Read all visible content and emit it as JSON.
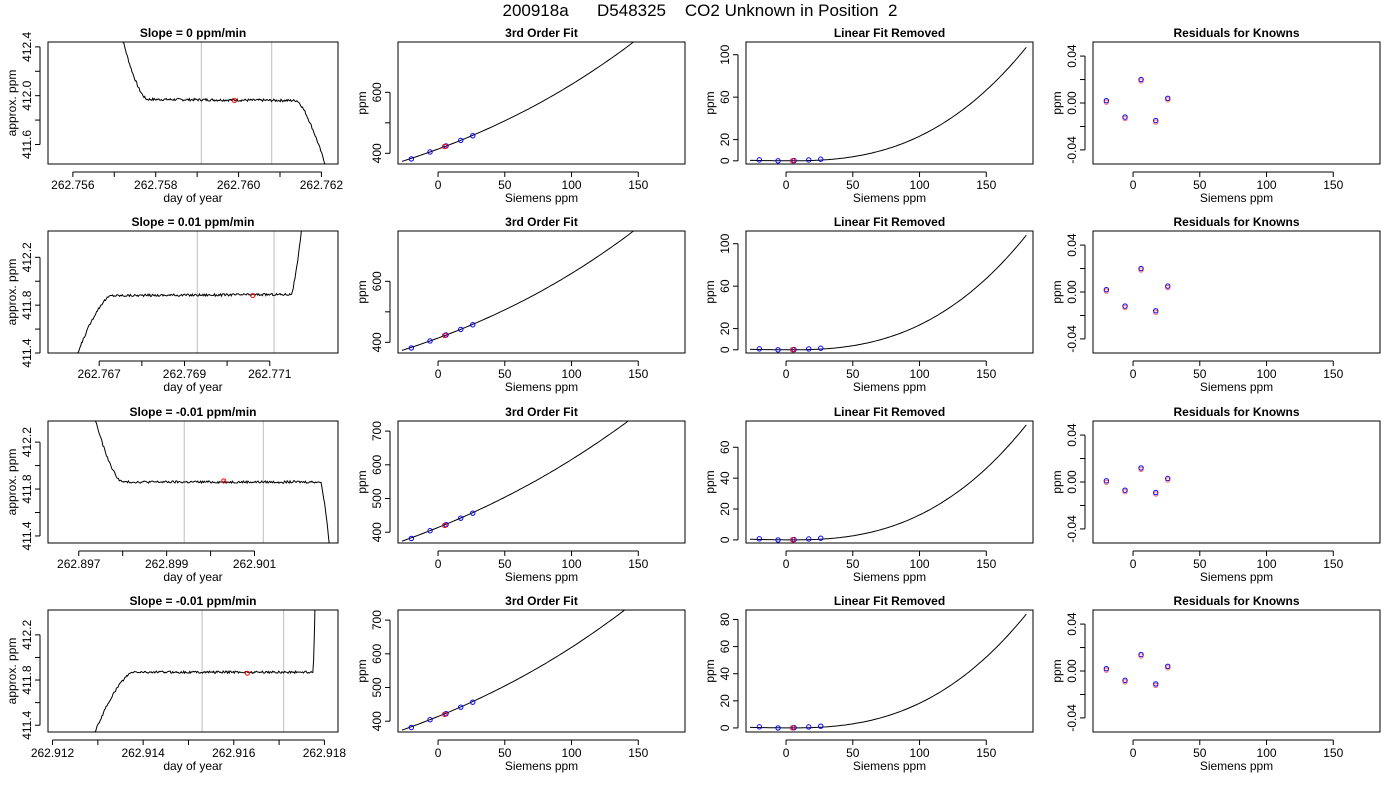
{
  "page": {
    "title": "200918a      D548325    CO2 Unknown in Position  2"
  },
  "colors": {
    "line": "#000000",
    "grid": "#bebebe",
    "known_point": "#0000ff",
    "unknown_point": "#ff0000",
    "residual_point": "#8a2be2"
  },
  "knowns_x": [
    -20.0,
    -6.0,
    6.0,
    17.0,
    26.0
  ],
  "unknown_x": 5.0,
  "chart_data": [
    {
      "type": "line",
      "title": "Slope =  0  ppm/min",
      "xlabel": "day of year",
      "ylabel": "approx. ppm",
      "xlim": [
        262.7554,
        262.7624
      ],
      "ylim": [
        411.44,
        412.44
      ],
      "xticks": [
        "262.756",
        "262.758",
        "262.760",
        "262.762"
      ],
      "xtick_values": [
        262.756,
        262.758,
        262.76,
        262.762
      ],
      "yticks": [
        "411.6",
        "412.0",
        "412.4"
      ],
      "ytick_values": [
        411.6,
        412.0,
        412.4
      ],
      "vlines": [
        262.7591,
        262.7608
      ],
      "trace": {
        "start": 262.7571,
        "end": 262.7621,
        "level": 411.97,
        "noise": 0.01,
        "drift": -0.01,
        "rise_end": 262.7578,
        "rise_from": 412.6,
        "fall_start": 262.7614,
        "fall_to": 411.44
      },
      "unknown_point": {
        "x": 262.7599,
        "y": 411.96
      }
    },
    {
      "type": "line",
      "title": "3rd Order Fit",
      "xlabel": "Siemens ppm",
      "ylabel": "ppm",
      "xlim": [
        -30,
        185
      ],
      "ylim": [
        365,
        765
      ],
      "xticks": [
        "0",
        "50",
        "100",
        "150"
      ],
      "xtick_values": [
        0,
        50,
        100,
        150
      ],
      "yticks": [
        "400",
        "600"
      ],
      "ytick_values": [
        400,
        600
      ],
      "fit": {
        "a": 414.0,
        "b": 1.615,
        "c": 0.00435,
        "d": 6.8e-06,
        "from": -27,
        "to": 180
      },
      "knowns_y": [
        381.6,
        404.5,
        424.2,
        442.4,
        457.6
      ],
      "unknown_y": 422.5
    },
    {
      "type": "line",
      "title": "Linear Fit Removed",
      "xlabel": "Siemens ppm",
      "ylabel": "ppm",
      "xlim": [
        -30,
        185
      ],
      "ylim": [
        -3,
        112
      ],
      "xticks": [
        "0",
        "50",
        "100",
        "150"
      ],
      "xtick_values": [
        0,
        50,
        100,
        150
      ],
      "yticks": [
        "0",
        "20",
        "60",
        "100"
      ],
      "ytick_values": [
        0,
        20,
        60,
        100
      ],
      "curve_top": 107.0,
      "knowns_y": [
        0.9,
        0.0,
        0.2,
        0.8,
        1.5
      ],
      "unknown_y": 0.1
    },
    {
      "type": "scatter",
      "title": "Residuals for Knowns",
      "xlabel": "Siemens ppm",
      "ylabel": "ppm",
      "xlim": [
        -30,
        185
      ],
      "ylim": [
        -0.052,
        0.052
      ],
      "xticks": [
        "0",
        "50",
        "100",
        "150"
      ],
      "xtick_values": [
        0,
        50,
        100,
        150
      ],
      "yticks": [
        "-0.04",
        "0.00",
        "0.04"
      ],
      "ytick_values": [
        -0.04,
        0.0,
        0.04
      ],
      "residuals_y": [
        0.002,
        -0.012,
        0.02,
        -0.015,
        0.004
      ]
    },
    {
      "type": "line",
      "title": "Slope =  0.01  ppm/min",
      "xlabel": "day of year",
      "ylabel": "approx. ppm",
      "xlim": [
        262.7658,
        262.7726
      ],
      "ylim": [
        411.4,
        412.42
      ],
      "xticks": [
        "262.767",
        "262.769",
        "262.771"
      ],
      "xtick_values": [
        262.767,
        262.769,
        262.771
      ],
      "yticks": [
        "411.4",
        "411.8",
        "412.2"
      ],
      "ytick_values": [
        411.4,
        411.8,
        412.2
      ],
      "vlines": [
        262.7693,
        262.7711
      ],
      "trace": {
        "start": 262.7664,
        "end": 262.7718,
        "level": 411.88,
        "noise": 0.01,
        "drift": 0.01,
        "rise_end": 262.7673,
        "rise_from": 411.3,
        "fall_start": 262.7715,
        "fall_to": 412.6
      },
      "unknown_point": {
        "x": 262.7706,
        "y": 411.88
      }
    },
    {
      "type": "line",
      "title": "3rd Order Fit",
      "xlabel": "Siemens ppm",
      "ylabel": "ppm",
      "xlim": [
        -30,
        185
      ],
      "ylim": [
        365,
        765
      ],
      "xticks": [
        "0",
        "50",
        "100",
        "150"
      ],
      "xtick_values": [
        0,
        50,
        100,
        150
      ],
      "yticks": [
        "400",
        "600"
      ],
      "ytick_values": [
        400,
        600
      ],
      "fit": {
        "a": 414.0,
        "b": 1.615,
        "c": 0.00435,
        "d": 6.8e-06,
        "from": -27,
        "to": 180
      },
      "knowns_y": [
        381.6,
        404.5,
        424.2,
        442.4,
        457.6
      ],
      "unknown_y": 422.5
    },
    {
      "type": "line",
      "title": "Linear Fit Removed",
      "xlabel": "Siemens ppm",
      "ylabel": "ppm",
      "xlim": [
        -30,
        185
      ],
      "ylim": [
        -3,
        112
      ],
      "xticks": [
        "0",
        "50",
        "100",
        "150"
      ],
      "xtick_values": [
        0,
        50,
        100,
        150
      ],
      "yticks": [
        "0",
        "20",
        "60",
        "100"
      ],
      "ytick_values": [
        0,
        20,
        60,
        100
      ],
      "curve_top": 108.0,
      "knowns_y": [
        0.9,
        0.0,
        0.2,
        0.8,
        1.5
      ],
      "unknown_y": 0.1
    },
    {
      "type": "scatter",
      "title": "Residuals for Knowns",
      "xlabel": "Siemens ppm",
      "ylabel": "ppm",
      "xlim": [
        -30,
        185
      ],
      "ylim": [
        -0.052,
        0.052
      ],
      "xticks": [
        "0",
        "50",
        "100",
        "150"
      ],
      "xtick_values": [
        0,
        50,
        100,
        150
      ],
      "yticks": [
        "-0.04",
        "0.00",
        "0.04"
      ],
      "ytick_values": [
        -0.04,
        0.0,
        0.04
      ],
      "residuals_y": [
        0.002,
        -0.012,
        0.02,
        -0.016,
        0.005
      ]
    },
    {
      "type": "line",
      "title": "Slope =  -0.01  ppm/min",
      "xlabel": "day of year",
      "ylabel": "approx. ppm",
      "xlim": [
        262.8963,
        262.9029
      ],
      "ylim": [
        411.34,
        412.38
      ],
      "xticks": [
        "262.897",
        "262.899",
        "262.901"
      ],
      "xtick_values": [
        262.897,
        262.899,
        262.901
      ],
      "yticks": [
        "411.4",
        "411.8",
        "412.2"
      ],
      "ytick_values": [
        411.4,
        411.8,
        412.2
      ],
      "vlines": [
        262.8994,
        262.9012
      ],
      "trace": {
        "start": 262.8973,
        "end": 262.9027,
        "level": 411.86,
        "noise": 0.01,
        "drift": 0.0,
        "rise_end": 262.898,
        "rise_from": 412.5,
        "fall_start": 262.9025,
        "fall_to": 411.34
      },
      "unknown_point": {
        "x": 262.9003,
        "y": 411.87
      }
    },
    {
      "type": "line",
      "title": "3rd Order Fit",
      "xlabel": "Siemens ppm",
      "ylabel": "ppm",
      "xlim": [
        -30,
        185
      ],
      "ylim": [
        368,
        730
      ],
      "xticks": [
        "0",
        "50",
        "100",
        "150"
      ],
      "xtick_values": [
        0,
        50,
        100,
        150
      ],
      "yticks": [
        "400",
        "500",
        "600",
        "700"
      ],
      "ytick_values": [
        400,
        500,
        600,
        700
      ],
      "fit": {
        "a": 414.0,
        "b": 1.6,
        "c": 0.0037,
        "d": 4.5e-06,
        "from": -27,
        "to": 180
      },
      "knowns_y": [
        381.5,
        404.4,
        422.4,
        441.7,
        456.5
      ],
      "unknown_y": 420.5
    },
    {
      "type": "line",
      "title": "Linear Fit Removed",
      "xlabel": "Siemens ppm",
      "ylabel": "ppm",
      "xlim": [
        -30,
        185
      ],
      "ylim": [
        -2,
        77
      ],
      "xticks": [
        "0",
        "50",
        "100",
        "150"
      ],
      "xtick_values": [
        0,
        50,
        100,
        150
      ],
      "yticks": [
        "0",
        "20",
        "40",
        "60"
      ],
      "ytick_values": [
        0,
        20,
        40,
        60
      ],
      "curve_top": 74.5,
      "knowns_y": [
        0.7,
        0.0,
        0.2,
        0.6,
        1.1
      ],
      "unknown_y": 0.1
    },
    {
      "type": "scatter",
      "title": "Residuals for Knowns",
      "xlabel": "Siemens ppm",
      "ylabel": "ppm",
      "xlim": [
        -30,
        185
      ],
      "ylim": [
        -0.052,
        0.052
      ],
      "xticks": [
        "0",
        "50",
        "100",
        "150"
      ],
      "xtick_values": [
        0,
        50,
        100,
        150
      ],
      "yticks": [
        "-0.04",
        "0.00",
        "0.04"
      ],
      "ytick_values": [
        -0.04,
        0.0,
        0.04
      ],
      "residuals_y": [
        0.001,
        -0.007,
        0.012,
        -0.009,
        0.003
      ]
    },
    {
      "type": "line",
      "title": "Slope =  -0.01  ppm/min",
      "xlabel": "day of year",
      "ylabel": "approx. ppm",
      "xlim": [
        262.9119,
        262.9183
      ],
      "ylim": [
        411.34,
        412.42
      ],
      "xticks": [
        "262.912",
        "262.914",
        "262.916",
        "262.918"
      ],
      "xtick_values": [
        262.912,
        262.914,
        262.916,
        262.918
      ],
      "yticks": [
        "411.4",
        "411.8",
        "412.2"
      ],
      "ytick_values": [
        411.4,
        411.8,
        412.2
      ],
      "vlines": [
        262.9153,
        262.9171
      ],
      "trace": {
        "start": 262.9129,
        "end": 262.9178,
        "level": 411.87,
        "noise": 0.01,
        "drift": 0.0,
        "rise_end": 262.9138,
        "rise_from": 411.3,
        "fall_start": 262.91775,
        "fall_to": 412.6
      },
      "unknown_point": {
        "x": 262.9163,
        "y": 411.86
      }
    },
    {
      "type": "line",
      "title": "3rd Order Fit",
      "xlabel": "Siemens ppm",
      "ylabel": "ppm",
      "xlim": [
        -30,
        185
      ],
      "ylim": [
        368,
        730
      ],
      "xticks": [
        "0",
        "50",
        "100",
        "150"
      ],
      "xtick_values": [
        0,
        50,
        100,
        150
      ],
      "yticks": [
        "400",
        "500",
        "600",
        "700"
      ],
      "ytick_values": [
        400,
        500,
        600,
        700
      ],
      "fit": {
        "a": 414.0,
        "b": 1.6,
        "c": 0.004,
        "d": 5.2e-06,
        "from": -27,
        "to": 180
      },
      "knowns_y": [
        381.5,
        404.4,
        422.4,
        441.7,
        456.5
      ],
      "unknown_y": 420.5
    },
    {
      "type": "line",
      "title": "Linear Fit Removed",
      "xlabel": "Siemens ppm",
      "ylabel": "ppm",
      "xlim": [
        -30,
        185
      ],
      "ylim": [
        -3,
        87
      ],
      "xticks": [
        "0",
        "50",
        "100",
        "150"
      ],
      "xtick_values": [
        0,
        50,
        100,
        150
      ],
      "yticks": [
        "0",
        "20",
        "40",
        "60",
        "80"
      ],
      "ytick_values": [
        0,
        20,
        40,
        60,
        80
      ],
      "curve_top": 84.0,
      "knowns_y": [
        0.8,
        0.0,
        0.2,
        0.7,
        1.3
      ],
      "unknown_y": 0.1
    },
    {
      "type": "scatter",
      "title": "Residuals for Knowns",
      "xlabel": "Siemens ppm",
      "ylabel": "ppm",
      "xlim": [
        -30,
        185
      ],
      "ylim": [
        -0.052,
        0.052
      ],
      "xticks": [
        "0",
        "50",
        "100",
        "150"
      ],
      "xtick_values": [
        0,
        50,
        100,
        150
      ],
      "yticks": [
        "-0.04",
        "0.00",
        "0.04"
      ],
      "ytick_values": [
        -0.04,
        0.0,
        0.04
      ],
      "residuals_y": [
        0.002,
        -0.008,
        0.014,
        -0.011,
        0.004
      ]
    }
  ]
}
